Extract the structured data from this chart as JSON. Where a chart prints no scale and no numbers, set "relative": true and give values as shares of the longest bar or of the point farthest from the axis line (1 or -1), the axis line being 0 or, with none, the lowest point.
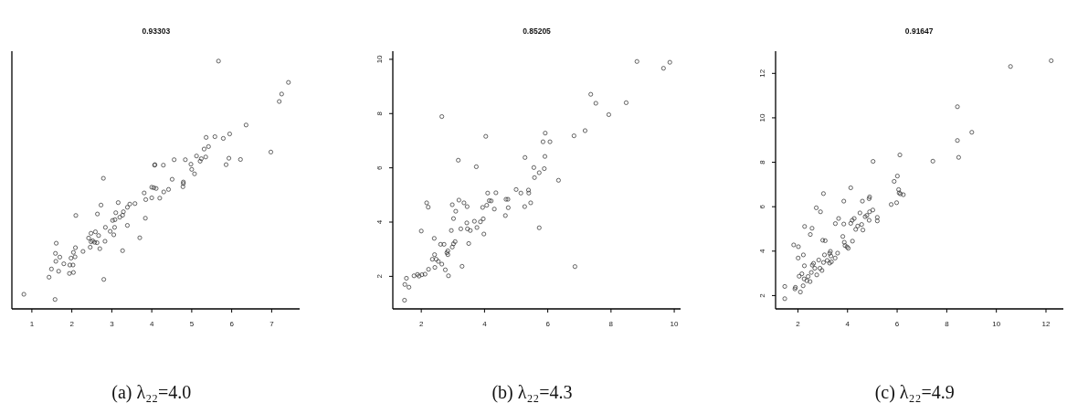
{
  "chart_data": [
    {
      "type": "scatter",
      "title": "0.93303",
      "annotations": [
        "(a) λ₂₂=4.0"
      ],
      "relative": true,
      "color": "#333333",
      "marker": "circle",
      "xlim": [
        0.5,
        7.7
      ],
      "xticks": [
        1,
        2,
        3,
        4,
        5,
        6,
        7
      ],
      "x": [
        5.67,
        7.42,
        7.25,
        7.19,
        6.36,
        5.36,
        5.58,
        5.79,
        5.95,
        5.42,
        5.31,
        6.98,
        5.12,
        5.35,
        5.24,
        5.21,
        5.93,
        6.22,
        4.56,
        4.84,
        4.98,
        5.86,
        5.0,
        5.07,
        4.08,
        4.07,
        4.29,
        2.79,
        4.51,
        4.79,
        4.79,
        4.78,
        4.0,
        4.05,
        4.11,
        4.42,
        3.81,
        4.3,
        4.0,
        4.2,
        3.85,
        3.16,
        3.58,
        3.45,
        2.73,
        3.39,
        3.1,
        3.29,
        2.64,
        3.27,
        3.2,
        3.08,
        3.02,
        2.1,
        3.84,
        3.39,
        3.07,
        2.84,
        2.96,
        3.05,
        3.7,
        2.48,
        2.59,
        2.67,
        2.42,
        2.52,
        2.48,
        2.57,
        2.63,
        2.83,
        1.61,
        2.09,
        2.46,
        2.7,
        2.28,
        3.27,
        1.59,
        2.04,
        1.7,
        1.98,
        2.08,
        1.6,
        1.8,
        1.95,
        2.03,
        1.49,
        1.67,
        1.94,
        2.04,
        1.43,
        2.8,
        0.8,
        1.58
      ],
      "values": [
        1.0,
        0.914,
        0.867,
        0.837,
        0.742,
        0.692,
        0.695,
        0.688,
        0.706,
        0.655,
        0.645,
        0.633,
        0.617,
        0.613,
        0.606,
        0.596,
        0.608,
        0.603,
        0.602,
        0.602,
        0.584,
        0.582,
        0.563,
        0.545,
        0.582,
        0.58,
        0.58,
        0.527,
        0.523,
        0.512,
        0.506,
        0.493,
        0.491,
        0.489,
        0.486,
        0.482,
        0.468,
        0.472,
        0.448,
        0.447,
        0.441,
        0.429,
        0.425,
        0.423,
        0.419,
        0.41,
        0.388,
        0.392,
        0.383,
        0.378,
        0.37,
        0.36,
        0.357,
        0.377,
        0.366,
        0.337,
        0.329,
        0.329,
        0.313,
        0.299,
        0.287,
        0.305,
        0.311,
        0.296,
        0.286,
        0.275,
        0.271,
        0.269,
        0.267,
        0.273,
        0.265,
        0.247,
        0.249,
        0.243,
        0.232,
        0.235,
        0.224,
        0.228,
        0.209,
        0.205,
        0.21,
        0.192,
        0.182,
        0.177,
        0.177,
        0.161,
        0.152,
        0.143,
        0.147,
        0.128,
        0.119,
        0.059,
        0.038
      ]
    },
    {
      "type": "scatter",
      "title": "0.85205",
      "annotations": [
        "(b) λ₂₂=4.3"
      ],
      "color": "#333333",
      "marker": "circle",
      "xlim": [
        1.1,
        10.2
      ],
      "xticks": [
        2,
        4,
        6,
        8,
        10
      ],
      "ylim": [
        0.8,
        10.3
      ],
      "yticks": [
        2,
        4,
        6,
        8,
        10
      ],
      "x": [
        8.82,
        9.86,
        9.66,
        7.36,
        7.52,
        8.48,
        7.93,
        2.65,
        7.18,
        6.83,
        4.04,
        5.92,
        5.85,
        6.07,
        3.17,
        5.28,
        5.91,
        3.74,
        5.56,
        5.89,
        5.73,
        5.58,
        6.34,
        5.0,
        5.15,
        5.39,
        5.4,
        4.1,
        4.36,
        5.46,
        5.27,
        2.17,
        2.22,
        3.19,
        3.35,
        2.98,
        3.45,
        4.15,
        4.21,
        4.68,
        4.74,
        4.07,
        3.94,
        4.31,
        4.75,
        3.09,
        3.02,
        4.66,
        3.44,
        3.68,
        3.87,
        3.96,
        2.0,
        2.95,
        3.25,
        3.46,
        3.55,
        3.76,
        3.98,
        5.73,
        2.41,
        2.61,
        2.72,
        3.5,
        3.07,
        3.02,
        2.98,
        2.84,
        2.81,
        2.42,
        2.84,
        2.35,
        2.47,
        2.54,
        2.65,
        2.43,
        2.23,
        2.76,
        3.29,
        6.86,
        2.86,
        1.77,
        1.88,
        1.93,
        2.02,
        2.12,
        1.53,
        1.48,
        1.61,
        1.47
      ],
      "values": [
        9.92,
        9.89,
        9.67,
        8.71,
        8.38,
        8.4,
        7.96,
        7.89,
        7.37,
        7.18,
        7.16,
        7.28,
        6.96,
        6.96,
        6.28,
        6.38,
        6.42,
        6.04,
        6.01,
        5.97,
        5.82,
        5.64,
        5.54,
        5.2,
        5.07,
        5.18,
        5.07,
        5.07,
        5.08,
        4.71,
        4.57,
        4.71,
        4.55,
        4.81,
        4.71,
        4.64,
        4.57,
        4.79,
        4.78,
        4.84,
        4.84,
        4.62,
        4.54,
        4.48,
        4.53,
        4.4,
        4.13,
        4.24,
        3.97,
        4.03,
        4.01,
        4.12,
        3.67,
        3.69,
        3.75,
        3.75,
        3.69,
        3.8,
        3.56,
        3.79,
        3.4,
        3.18,
        3.18,
        3.21,
        3.28,
        3.2,
        3.08,
        2.94,
        2.87,
        2.8,
        2.8,
        2.63,
        2.63,
        2.55,
        2.45,
        2.33,
        2.26,
        2.24,
        2.37,
        2.36,
        2.02,
        2.02,
        2.07,
        2.01,
        2.06,
        2.08,
        1.93,
        1.7,
        1.6,
        1.12
      ]
    },
    {
      "type": "scatter",
      "title": "0.91647",
      "annotations": [
        "(c) λ₂₂=4.9"
      ],
      "color": "#333333",
      "marker": "circle",
      "xlim": [
        1.1,
        12.7
      ],
      "xticks": [
        2,
        4,
        6,
        8,
        10,
        12
      ],
      "ylim": [
        1.4,
        13.0
      ],
      "yticks": [
        2,
        4,
        6,
        8,
        10,
        12
      ],
      "x": [
        12.21,
        10.57,
        8.43,
        9.01,
        8.43,
        8.48,
        6.11,
        5.03,
        7.44,
        6.01,
        5.88,
        4.13,
        3.03,
        6.06,
        6.08,
        6.13,
        6.25,
        4.89,
        4.87,
        3.85,
        4.6,
        5.98,
        5.76,
        2.74,
        2.91,
        5.02,
        4.89,
        4.5,
        4.78,
        4.71,
        3.64,
        4.27,
        4.19,
        5.2,
        5.2,
        4.87,
        3.51,
        3.85,
        4.13,
        4.57,
        4.41,
        2.27,
        2.57,
        4.33,
        4.62,
        2.5,
        3.0,
        3.1,
        4.2,
        3.81,
        3.87,
        3.9,
        3.98,
        4.03,
        1.83,
        2.02,
        3.31,
        3.28,
        3.6,
        3.07,
        2.22,
        2.01,
        2.84,
        3.33,
        3.5,
        3.18,
        3.35,
        3.03,
        3.28,
        2.63,
        2.26,
        2.58,
        2.68,
        2.89,
        2.97,
        2.54,
        2.76,
        2.16,
        2.05,
        2.41,
        2.25,
        2.36,
        2.49,
        2.21,
        1.47,
        1.9,
        1.88,
        2.1,
        1.47
      ],
      "values": [
        12.57,
        12.31,
        10.5,
        9.35,
        8.98,
        8.22,
        8.33,
        8.04,
        8.05,
        7.38,
        7.14,
        6.85,
        6.59,
        6.77,
        6.62,
        6.58,
        6.54,
        6.44,
        6.36,
        6.25,
        6.25,
        6.18,
        6.1,
        5.95,
        5.77,
        5.85,
        5.77,
        5.72,
        5.61,
        5.55,
        5.47,
        5.47,
        5.39,
        5.52,
        5.36,
        5.39,
        5.24,
        5.22,
        5.25,
        5.2,
        5.13,
        5.11,
        5.03,
        4.98,
        4.95,
        4.75,
        4.49,
        4.47,
        4.45,
        4.66,
        4.4,
        4.25,
        4.19,
        4.13,
        4.28,
        4.2,
        3.99,
        3.9,
        3.91,
        3.83,
        3.83,
        3.69,
        3.6,
        3.78,
        3.69,
        3.58,
        3.52,
        3.49,
        3.46,
        3.45,
        3.34,
        3.37,
        3.23,
        3.23,
        3.13,
        3.04,
        2.93,
        2.98,
        2.87,
        2.86,
        2.75,
        2.67,
        2.63,
        2.44,
        2.41,
        2.37,
        2.3,
        2.16,
        1.86
      ]
    }
  ]
}
